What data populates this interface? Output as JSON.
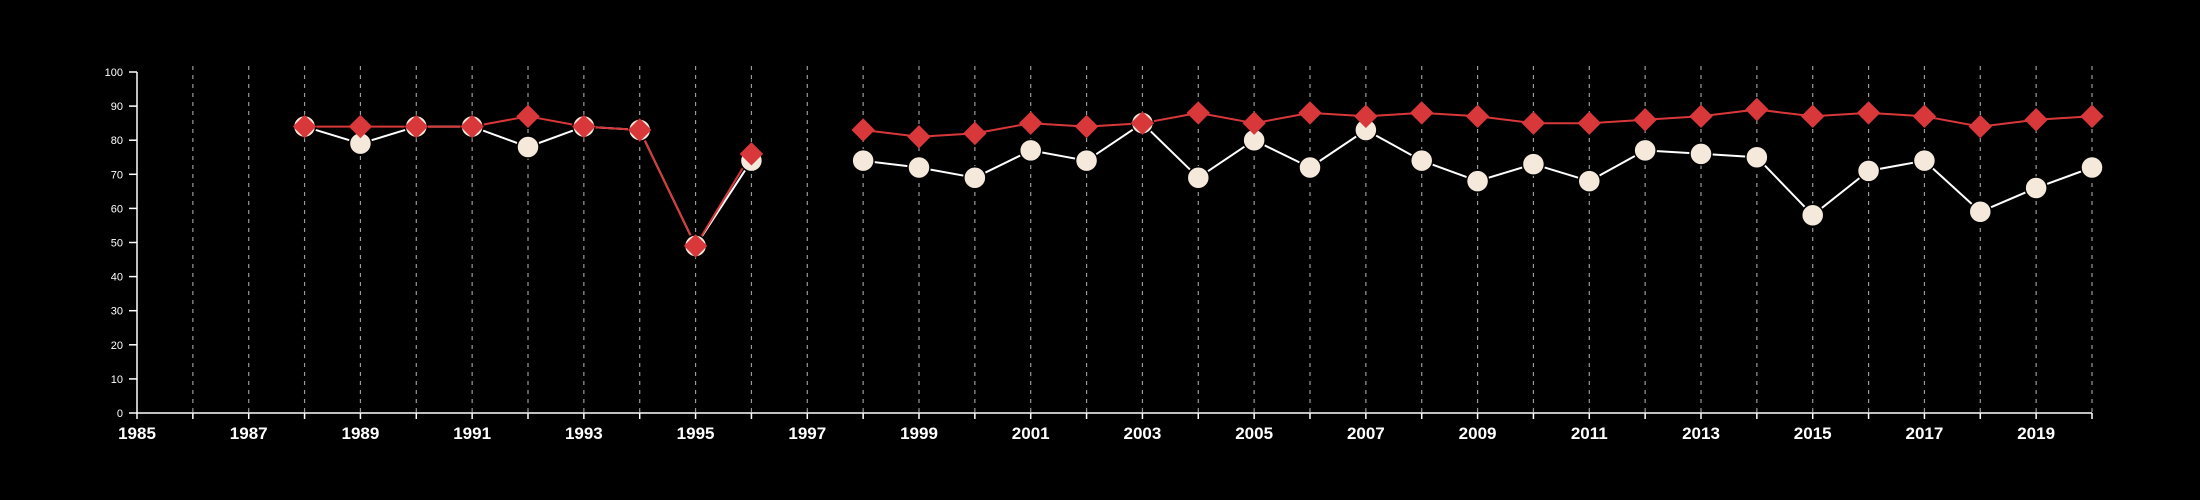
{
  "chart_data": {
    "type": "line",
    "title": "",
    "xlabel": "",
    "ylabel": "",
    "xlim": [
      1985,
      2020
    ],
    "ylim": [
      0,
      100
    ],
    "y_ticks": [
      0,
      10,
      20,
      30,
      40,
      50,
      60,
      70,
      80,
      90,
      100
    ],
    "x_ticks": [
      1985,
      1987,
      1989,
      1991,
      1993,
      1995,
      1997,
      1999,
      2001,
      2003,
      2005,
      2007,
      2009,
      2011,
      2013,
      2015,
      2017,
      2019
    ],
    "vertical_grid": "dashed, every year",
    "background_color": "#000000",
    "axis_color": "#ffffff",
    "series": [
      {
        "marker": "circle",
        "color": "#ffffff",
        "marker_fill": "#f5e9dc",
        "segments": [
          [
            [
              1988,
              84
            ],
            [
              1989,
              79
            ],
            [
              1990,
              84
            ],
            [
              1991,
              84
            ],
            [
              1992,
              78
            ],
            [
              1993,
              84
            ],
            [
              1994,
              83
            ],
            [
              1995,
              49
            ],
            [
              1996,
              74
            ]
          ],
          [
            [
              1998,
              74
            ],
            [
              1999,
              72
            ],
            [
              2000,
              69
            ],
            [
              2001,
              77
            ],
            [
              2002,
              74
            ],
            [
              2003,
              85
            ],
            [
              2004,
              69
            ],
            [
              2005,
              80
            ],
            [
              2006,
              72
            ],
            [
              2007,
              83
            ],
            [
              2008,
              74
            ],
            [
              2009,
              68
            ],
            [
              2010,
              73
            ],
            [
              2011,
              68
            ],
            [
              2012,
              77
            ],
            [
              2013,
              76
            ],
            [
              2014,
              75
            ],
            [
              2015,
              58
            ],
            [
              2016,
              71
            ],
            [
              2017,
              74
            ],
            [
              2018,
              59
            ],
            [
              2019,
              66
            ],
            [
              2020,
              72
            ]
          ]
        ]
      },
      {
        "marker": "diamond",
        "color": "#d9383a",
        "marker_fill": "#d9383a",
        "segments": [
          [
            [
              1988,
              84
            ],
            [
              1989,
              84
            ],
            [
              1990,
              84
            ],
            [
              1991,
              84
            ],
            [
              1992,
              87
            ],
            [
              1993,
              84
            ],
            [
              1994,
              83
            ],
            [
              1995,
              49
            ],
            [
              1996,
              76
            ]
          ],
          [
            [
              1998,
              83
            ],
            [
              1999,
              81
            ],
            [
              2000,
              82
            ],
            [
              2001,
              85
            ],
            [
              2002,
              84
            ],
            [
              2003,
              85
            ],
            [
              2004,
              88
            ],
            [
              2005,
              85
            ],
            [
              2006,
              88
            ],
            [
              2007,
              87
            ],
            [
              2008,
              88
            ],
            [
              2009,
              87
            ],
            [
              2010,
              85
            ],
            [
              2011,
              85
            ],
            [
              2012,
              86
            ],
            [
              2013,
              87
            ],
            [
              2014,
              89
            ],
            [
              2015,
              87
            ],
            [
              2016,
              88
            ],
            [
              2017,
              87
            ],
            [
              2018,
              84
            ],
            [
              2019,
              86
            ],
            [
              2020,
              87
            ]
          ]
        ]
      }
    ]
  }
}
